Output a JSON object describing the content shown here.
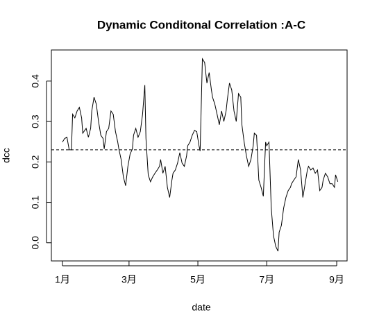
{
  "chart_data": {
    "type": "line",
    "title": "Dynamic Conditonal Correlation :A-C",
    "xlabel": "date",
    "ylabel": "dcc",
    "x": [
      0,
      2,
      4,
      6,
      8,
      9,
      11,
      13,
      15,
      17,
      18,
      21,
      23,
      25,
      26,
      28,
      30,
      32,
      34,
      36,
      37,
      39,
      41,
      43,
      45,
      47,
      49,
      50,
      52,
      54,
      56,
      58,
      60,
      62,
      63,
      65,
      67,
      69,
      71,
      73,
      74,
      76,
      78,
      80,
      82,
      84,
      86,
      87,
      89,
      91,
      93,
      95,
      97,
      98,
      100,
      102,
      104,
      106,
      108,
      110,
      111,
      113,
      115,
      117,
      119,
      121,
      122,
      124,
      126,
      128,
      130,
      132,
      133,
      135,
      137,
      139,
      141,
      143,
      145,
      146,
      148,
      150,
      152,
      154,
      156,
      158,
      159,
      161,
      163,
      165,
      167,
      169,
      170,
      172,
      174,
      176,
      178,
      180,
      181,
      183,
      185,
      187,
      189,
      191,
      192,
      194,
      196,
      198,
      200,
      202,
      203,
      205,
      207,
      209,
      211,
      213,
      215,
      217,
      218,
      220,
      222,
      224,
      226,
      228,
      230,
      231,
      233,
      235,
      237,
      239,
      241,
      242,
      244
    ],
    "series": [
      {
        "name": "dcc",
        "color": "#000000",
        "values": [
          0.249,
          0.258,
          0.261,
          0.23,
          0.23,
          0.318,
          0.309,
          0.326,
          0.335,
          0.309,
          0.271,
          0.283,
          0.261,
          0.283,
          0.326,
          0.36,
          0.343,
          0.3,
          0.266,
          0.258,
          0.232,
          0.275,
          0.283,
          0.326,
          0.318,
          0.275,
          0.249,
          0.232,
          0.206,
          0.163,
          0.141,
          0.189,
          0.22,
          0.232,
          0.266,
          0.283,
          0.261,
          0.275,
          0.318,
          0.39,
          0.258,
          0.168,
          0.151,
          0.163,
          0.172,
          0.18,
          0.189,
          0.206,
          0.172,
          0.189,
          0.137,
          0.112,
          0.155,
          0.172,
          0.18,
          0.197,
          0.223,
          0.197,
          0.189,
          0.215,
          0.24,
          0.249,
          0.266,
          0.278,
          0.275,
          0.24,
          0.227,
          0.455,
          0.446,
          0.395,
          0.421,
          0.378,
          0.36,
          0.343,
          0.318,
          0.292,
          0.326,
          0.3,
          0.326,
          0.352,
          0.395,
          0.378,
          0.326,
          0.3,
          0.369,
          0.36,
          0.292,
          0.249,
          0.215,
          0.189,
          0.206,
          0.24,
          0.271,
          0.266,
          0.155,
          0.137,
          0.115,
          0.249,
          0.24,
          0.249,
          0.086,
          0.017,
          -0.009,
          -0.021,
          0.026,
          0.043,
          0.086,
          0.112,
          0.129,
          0.137,
          0.146,
          0.155,
          0.163,
          0.206,
          0.18,
          0.112,
          0.146,
          0.18,
          0.189,
          0.18,
          0.185,
          0.172,
          0.18,
          0.129,
          0.137,
          0.155,
          0.172,
          0.163,
          0.146,
          0.146,
          0.137,
          0.168,
          0.151
        ]
      }
    ],
    "hline": 0.23,
    "xlim": [
      -9.8,
      252.2
    ],
    "xticks": [
      {
        "value": 0,
        "label": "1月"
      },
      {
        "value": 59,
        "label": "3月"
      },
      {
        "value": 120,
        "label": "5月"
      },
      {
        "value": 181,
        "label": "7月"
      },
      {
        "value": 243,
        "label": "9月"
      }
    ],
    "ylim": [
      -0.045,
      0.477
    ],
    "yticks": [
      {
        "value": 0,
        "label": "0.0"
      },
      0.1,
      0.2,
      0.3,
      0.4
    ],
    "grid": false
  }
}
